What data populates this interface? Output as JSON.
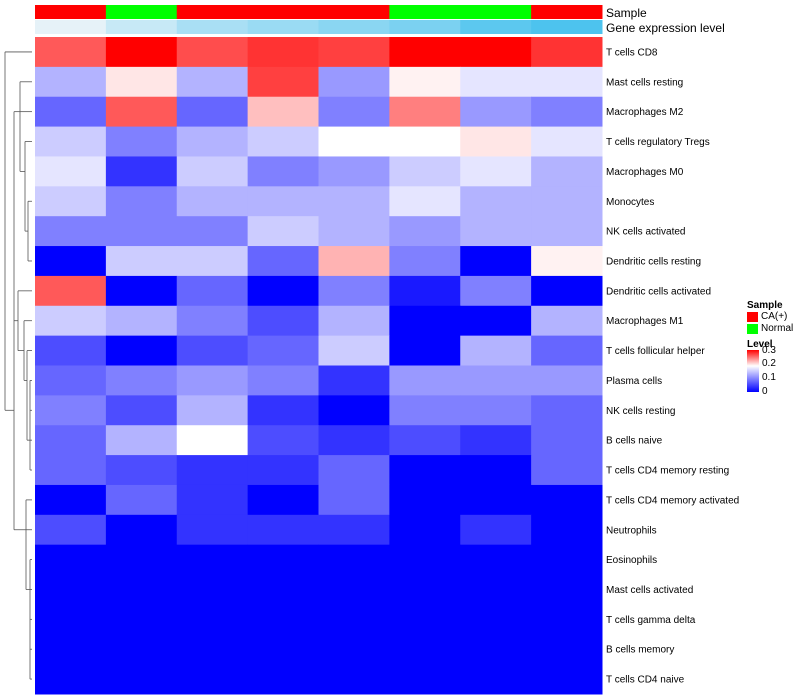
{
  "chart_data": {
    "type": "heatmap",
    "annotations": [
      {
        "name": "Sample",
        "values": [
          "CA(+)",
          "Normal",
          "CA(+)",
          "CA(+)",
          "CA(+)",
          "Normal",
          "Normal",
          "CA(+)"
        ]
      },
      {
        "name": "Gene expression level",
        "values": [
          0.28,
          0.24,
          0.2,
          0.18,
          0.16,
          0.14,
          0.1,
          0.08
        ]
      }
    ],
    "rows": [
      "T cells CD8",
      "Mast cells resting",
      "Macrophages M2",
      "T cells regulatory  Tregs",
      "Macrophages M0",
      "Monocytes",
      "NK cells activated",
      "Dendritic cells resting",
      "Dendritic cells activated",
      "Macrophages M1",
      "T cells follicular helper",
      "Plasma cells",
      "NK cells resting",
      "B cells naive",
      "T cells CD4 memory resting",
      "T cells CD4 memory activated",
      "Neutrophils",
      "Eosinophils",
      "Mast cells activated",
      "T cells gamma delta",
      "B cells memory",
      "T cells CD4 naive"
    ],
    "columns": 8,
    "values": [
      [
        0.23,
        0.3,
        0.24,
        0.26,
        0.25,
        0.3,
        0.3,
        0.26
      ],
      [
        0.07,
        0.12,
        0.07,
        0.25,
        0.06,
        0.11,
        0.09,
        0.09
      ],
      [
        0.04,
        0.23,
        0.04,
        0.15,
        0.05,
        0.2,
        0.06,
        0.05
      ],
      [
        0.08,
        0.05,
        0.07,
        0.08,
        0.1,
        0.1,
        0.12,
        0.09
      ],
      [
        0.09,
        0.02,
        0.08,
        0.05,
        0.06,
        0.08,
        0.09,
        0.07
      ],
      [
        0.08,
        0.05,
        0.07,
        0.07,
        0.07,
        0.09,
        0.07,
        0.07
      ],
      [
        0.05,
        0.05,
        0.05,
        0.08,
        0.07,
        0.06,
        0.07,
        0.07
      ],
      [
        0.0,
        0.08,
        0.08,
        0.04,
        0.16,
        0.05,
        0.0,
        0.11
      ],
      [
        0.23,
        0.0,
        0.04,
        0.0,
        0.05,
        0.01,
        0.05,
        0.0
      ],
      [
        0.08,
        0.07,
        0.05,
        0.03,
        0.07,
        0.0,
        0.0,
        0.07
      ],
      [
        0.03,
        0.0,
        0.03,
        0.04,
        0.08,
        0.0,
        0.07,
        0.04
      ],
      [
        0.04,
        0.05,
        0.06,
        0.05,
        0.02,
        0.06,
        0.06,
        0.06
      ],
      [
        0.05,
        0.03,
        0.07,
        0.02,
        0.0,
        0.05,
        0.05,
        0.04
      ],
      [
        0.04,
        0.07,
        0.1,
        0.03,
        0.02,
        0.03,
        0.02,
        0.04
      ],
      [
        0.04,
        0.03,
        0.02,
        0.02,
        0.04,
        0.0,
        0.0,
        0.04
      ],
      [
        0.0,
        0.04,
        0.02,
        0.0,
        0.04,
        0.0,
        0.0,
        0.0
      ],
      [
        0.03,
        0.0,
        0.02,
        0.02,
        0.02,
        0.0,
        0.02,
        0.0
      ],
      [
        0.0,
        0.0,
        0.0,
        0.0,
        0.0,
        0.0,
        0.0,
        0.0
      ],
      [
        0.0,
        0.0,
        0.0,
        0.0,
        0.0,
        0.0,
        0.0,
        0.0
      ],
      [
        0.0,
        0.0,
        0.0,
        0.0,
        0.0,
        0.0,
        0.0,
        0.0
      ],
      [
        0.0,
        0.0,
        0.0,
        0.0,
        0.0,
        0.0,
        0.0,
        0.0
      ],
      [
        0.0,
        0.0,
        0.0,
        0.0,
        0.0,
        0.0,
        0.0,
        0.0
      ]
    ],
    "scale": {
      "min": 0,
      "mid": 0.1,
      "max": 0.3,
      "low_color": "#0000ff",
      "mid_color": "#ffffff",
      "high_color": "#ff0000"
    },
    "sample_colors": {
      "CA(+)": "#ff0000",
      "Normal": "#00ff00"
    },
    "expression_colors": {
      "low": "#e6f2f8",
      "high": "#4dc3ee"
    }
  },
  "legend": {
    "sample_title": "Sample",
    "sample_items": [
      {
        "label": "CA(+)",
        "color": "#ff0000"
      },
      {
        "label": "Normal",
        "color": "#00ff00"
      }
    ],
    "level_title": "Level",
    "level_ticks": [
      "0.3",
      "0.2",
      "0.1",
      "0"
    ]
  }
}
